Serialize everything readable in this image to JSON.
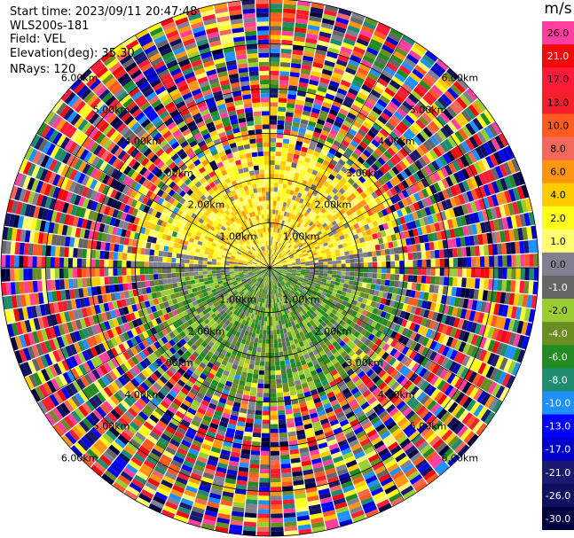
{
  "header": {
    "start_time": "Start time: 2023/09/11 20:47:48",
    "site": "WLS200s-181",
    "field": "Field: VEL",
    "elevation": "Elevation(deg): 35.30",
    "nrays": "NRays: 120"
  },
  "colorbar": {
    "unit": "m/s",
    "levels": [
      {
        "label": "26.0",
        "color": "#ff3fa0"
      },
      {
        "label": "21.0",
        "color": "#f00a0a"
      },
      {
        "label": "17.0",
        "color": "#ff1a3a"
      },
      {
        "label": "13.0",
        "color": "#f5202c"
      },
      {
        "label": "10.0",
        "color": "#ff5a1f"
      },
      {
        "label": "8.0",
        "color": "#f3685a"
      },
      {
        "label": "6.0",
        "color": "#ff9510"
      },
      {
        "label": "4.0",
        "color": "#ffcc00"
      },
      {
        "label": "2.0",
        "color": "#ffff1a"
      },
      {
        "label": "1.0",
        "color": "#ffff70"
      },
      {
        "label": "0.0",
        "color": "#808090"
      },
      {
        "label": "-1.0",
        "color": "#666666"
      },
      {
        "label": "-2.0",
        "color": "#9acd32"
      },
      {
        "label": "-4.0",
        "color": "#6b8e23"
      },
      {
        "label": "-6.0",
        "color": "#228b22"
      },
      {
        "label": "-8.0",
        "color": "#1e8c6e"
      },
      {
        "label": "-10.0",
        "color": "#1e90ff"
      },
      {
        "label": "-13.0",
        "color": "#0000ff"
      },
      {
        "label": "-17.0",
        "color": "#0000cd"
      },
      {
        "label": "-21.0",
        "color": "#191970"
      },
      {
        "label": "-26.0",
        "color": "#101060"
      },
      {
        "label": "-30.0",
        "color": "#000040"
      }
    ]
  },
  "chart_data": {
    "type": "heatmap",
    "projection": "polar-ppi",
    "field": "VEL",
    "n_rays": 120,
    "range_rings": [
      {
        "label": "1.00km"
      },
      {
        "label": "2.00km"
      },
      {
        "label": "3.00km"
      },
      {
        "label": "4.00km"
      },
      {
        "label": "5.00km"
      },
      {
        "label": "6.00km"
      }
    ],
    "spoke_spacing_deg": 30,
    "description_pattern": "positive velocities north, negative velocities south, noisy far ranges"
  }
}
